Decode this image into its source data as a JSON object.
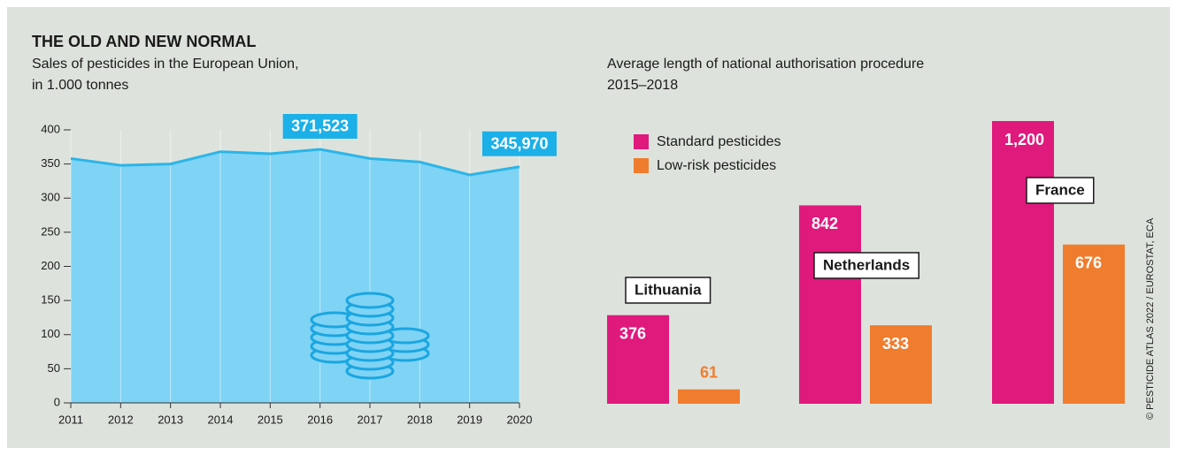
{
  "title": "THE OLD AND NEW NORMAL",
  "source": "© PESTICIDE ATLAS 2022 / EUROSTAT, ECA",
  "chart_data": [
    {
      "type": "area",
      "subtitle": [
        "Sales of pesticides in the European Union,",
        "in 1.000 tonnes"
      ],
      "categories": [
        "2011",
        "2012",
        "2013",
        "2014",
        "2015",
        "2016",
        "2017",
        "2018",
        "2019",
        "2020"
      ],
      "values": [
        358,
        348,
        350,
        368,
        365,
        371.523,
        358,
        353,
        334,
        345.97
      ],
      "value_labels": [
        null,
        null,
        null,
        null,
        null,
        "371,523",
        null,
        null,
        null,
        "345,970"
      ],
      "color": "#2bb5e8",
      "fill": "#7fd3f5",
      "ylim": [
        0,
        400
      ],
      "yticks": [
        0,
        50,
        100,
        150,
        200,
        250,
        300,
        350,
        400
      ],
      "grid": true
    },
    {
      "type": "bar",
      "subtitle": [
        "Average length of national authorisation procedure",
        "2015–2018"
      ],
      "categories": [
        "Lithuania",
        "Netherlands",
        "France"
      ],
      "series": [
        {
          "name": "Standard pesticides",
          "color": "#e0197d",
          "values": [
            376,
            842,
            1200
          ],
          "value_labels": [
            "376",
            "842",
            "1,200"
          ]
        },
        {
          "name": "Low-risk pesticides",
          "color": "#f07c2e",
          "values": [
            61,
            333,
            676
          ]
        }
      ],
      "legend": "top-left"
    }
  ]
}
